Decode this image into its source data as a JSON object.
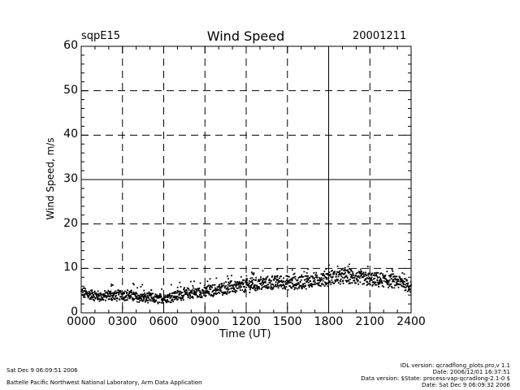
{
  "header": {
    "station": "sqpE15",
    "title": "Wind Speed",
    "date": "20001211"
  },
  "footer": {
    "left_line1": "Sat Dec  9 06:09:51 2006",
    "left_line2": "Battelle Pacific Northwest National Laboratory, Arm Data Application",
    "right_line1": "IDL version: qcradflong_plots.pro,v 1.1",
    "right_line2": "Date: 2006/12/01 16:37:51",
    "right_line3": "Data version: $State: process-vap-qcradlong-2.1-0 $",
    "right_line4": "Date: Sat Dec  9 06:09:32 2006"
  },
  "chart_data": {
    "type": "scatter",
    "xlabel": "Time (UT)",
    "ylabel": "Wind Speed, m/s",
    "xlim": [
      0,
      24
    ],
    "ylim": [
      0,
      60
    ],
    "x_tick_labels": [
      "0000",
      "0300",
      "0600",
      "0900",
      "1200",
      "1500",
      "1800",
      "2100",
      "2400"
    ],
    "y_tick_labels": [
      "0",
      "10",
      "20",
      "30",
      "40",
      "50",
      "60"
    ],
    "grid": true,
    "solid_gridlines": {
      "x": [
        18
      ],
      "y": [
        30
      ]
    },
    "point_color": "#000000",
    "series": [
      {
        "x": [
          0.0,
          0.5,
          1.0,
          1.5,
          2.0,
          2.5,
          3.0,
          3.5,
          4.0,
          4.5,
          5.0,
          5.5,
          6.0,
          6.5,
          7.0,
          7.5,
          8.0,
          8.5,
          9.0,
          9.5,
          10.0,
          10.5,
          11.0,
          11.5,
          12.0,
          12.5,
          13.0,
          13.5,
          14.0,
          14.5,
          15.0,
          15.5,
          16.0,
          16.5,
          17.0,
          17.5,
          18.0,
          18.5,
          19.0,
          19.5,
          20.0,
          20.5,
          21.0,
          21.5,
          22.0,
          22.5,
          23.0,
          23.5,
          24.0
        ],
        "y": [
          4.6,
          4.2,
          3.9,
          3.6,
          4.0,
          3.8,
          4.1,
          4.0,
          3.6,
          3.3,
          3.4,
          3.1,
          3.3,
          3.6,
          3.9,
          4.3,
          4.4,
          4.5,
          4.8,
          5.0,
          5.2,
          5.6,
          5.8,
          5.9,
          6.1,
          6.3,
          6.5,
          6.6,
          6.7,
          6.9,
          6.8,
          6.6,
          6.9,
          7.1,
          7.4,
          7.6,
          7.8,
          8.0,
          8.2,
          8.1,
          7.9,
          7.7,
          7.5,
          7.4,
          7.3,
          7.2,
          7.0,
          6.7,
          5.8
        ]
      }
    ]
  }
}
